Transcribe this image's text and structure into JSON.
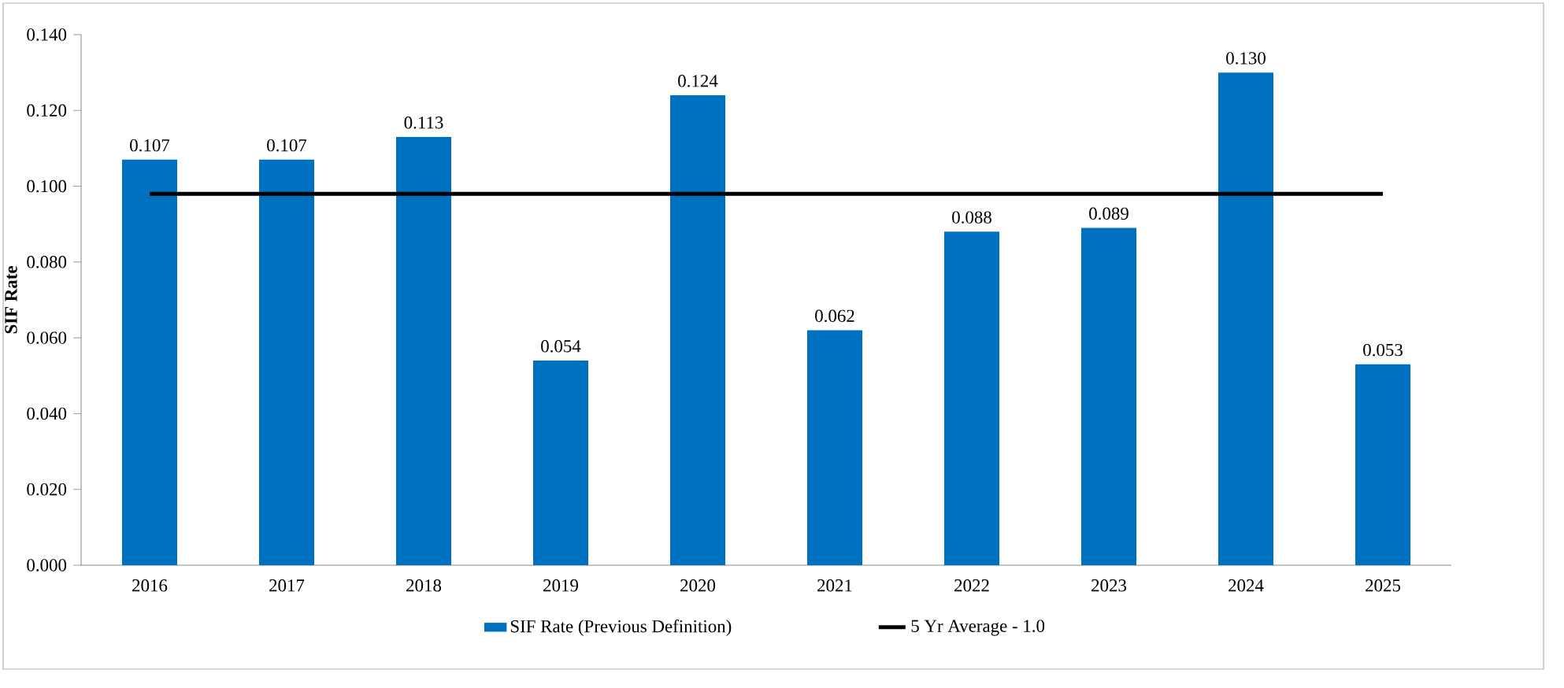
{
  "chart_data": {
    "type": "bar",
    "ylabel": "SIF Rate",
    "categories": [
      "2016",
      "2017",
      "2018",
      "2019",
      "2020",
      "2021",
      "2022",
      "2023",
      "2024",
      "2025"
    ],
    "series": [
      {
        "name": "SIF Rate (Previous Definition)",
        "color": "#0070c0",
        "values": [
          0.107,
          0.107,
          0.113,
          0.054,
          0.124,
          0.062,
          0.088,
          0.089,
          0.13,
          0.053
        ],
        "value_labels": [
          "0.107",
          "0.107",
          "0.113",
          "0.054",
          "0.124",
          "0.062",
          "0.088",
          "0.089",
          "0.130",
          "0.053"
        ]
      },
      {
        "name": "5 Yr Average - 1.0",
        "type": "line",
        "color": "#000000",
        "values": [
          0.098,
          0.098,
          0.098,
          0.098,
          0.098,
          0.098,
          0.098,
          0.098,
          0.098,
          0.098
        ]
      }
    ],
    "ylim": [
      0,
      0.14
    ],
    "yticks": [
      {
        "value": 0,
        "label": "0.000"
      },
      {
        "value": 0.02,
        "label": "0.020"
      },
      {
        "value": 0.04,
        "label": "0.040"
      },
      {
        "value": 0.06,
        "label": "0.060"
      },
      {
        "value": 0.08,
        "label": "0.080"
      },
      {
        "value": 0.1,
        "label": "0.100"
      },
      {
        "value": 0.12,
        "label": "0.120"
      },
      {
        "value": 0.14,
        "label": "0.140"
      }
    ],
    "grid": false,
    "legend": "bottom",
    "marker": "none",
    "line_style": "solid"
  }
}
